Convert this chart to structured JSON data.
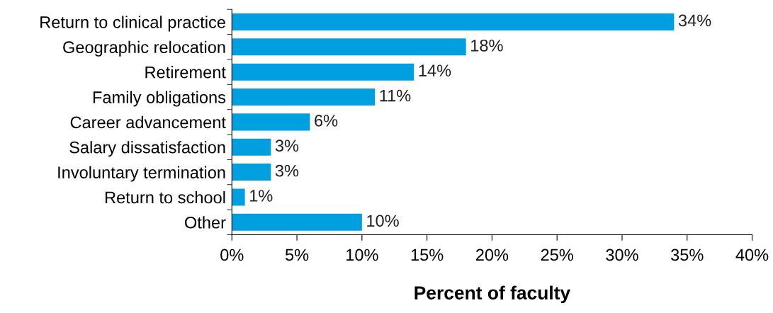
{
  "chart_data": {
    "type": "bar",
    "orientation": "horizontal",
    "xlabel": "Percent of faculty",
    "categories": [
      "Return to clinical practice",
      "Geographic relocation",
      "Retirement",
      "Family obligations",
      "Career advancement",
      "Salary dissatisfaction",
      "Involuntary termination",
      "Return to school",
      "Other"
    ],
    "values": [
      34,
      18,
      14,
      11,
      6,
      3,
      3,
      1,
      10
    ],
    "value_labels": [
      "34%",
      "18%",
      "14%",
      "11%",
      "6%",
      "3%",
      "3%",
      "1%",
      "10%"
    ],
    "color": "#009fdf",
    "xlim": [
      0,
      40
    ],
    "xticks": [
      {
        "value": 0,
        "label": "0%"
      },
      {
        "value": 5,
        "label": "5%"
      },
      {
        "value": 10,
        "label": "10%"
      },
      {
        "value": 15,
        "label": "15%"
      },
      {
        "value": 20,
        "label": "20%"
      },
      {
        "value": 25,
        "label": "25%"
      },
      {
        "value": 30,
        "label": "30%"
      },
      {
        "value": 35,
        "label": "35%"
      },
      {
        "value": 40,
        "label": "40%"
      }
    ],
    "grid": false
  }
}
